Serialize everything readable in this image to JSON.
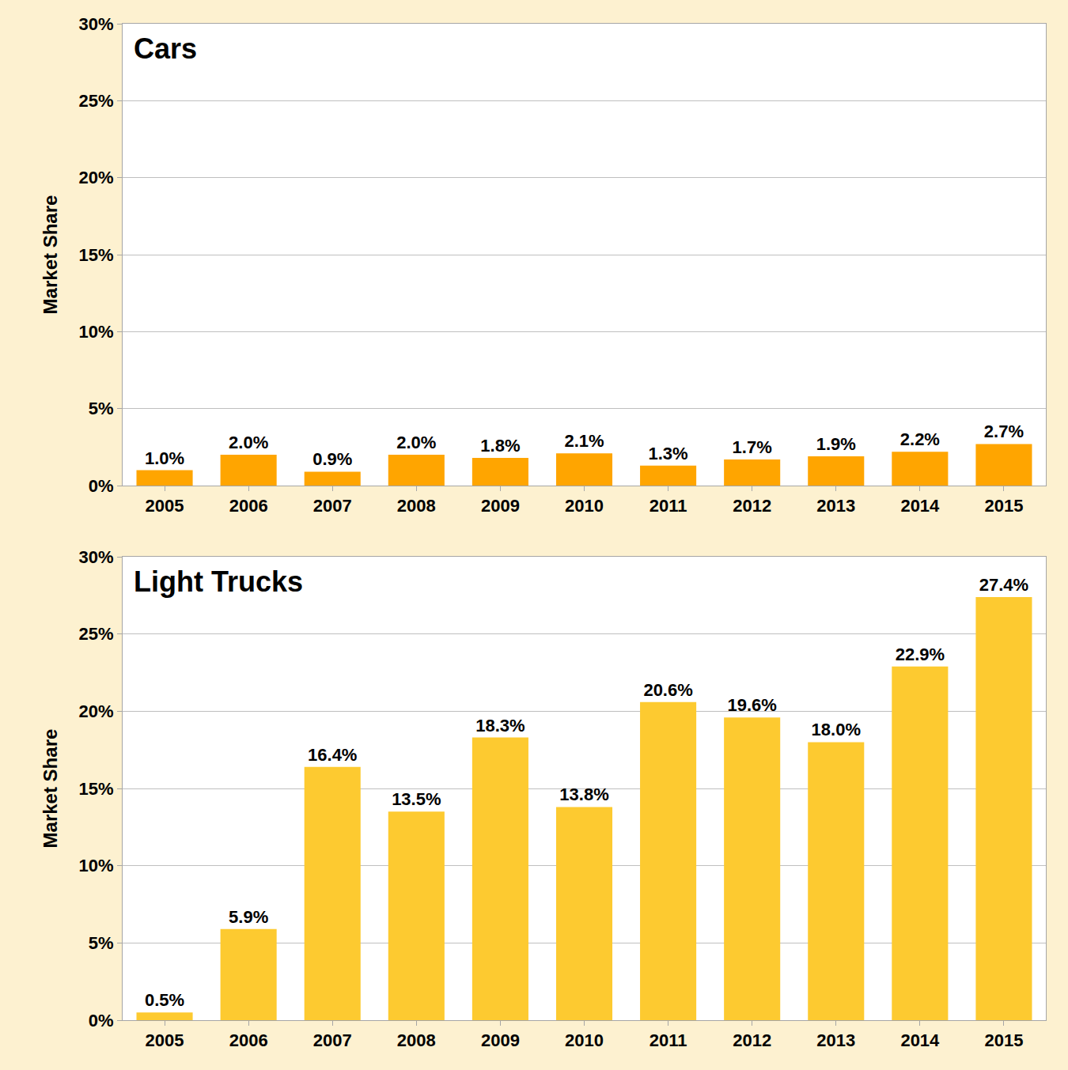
{
  "chart_data": [
    {
      "type": "bar",
      "title": "Cars",
      "y_label": "Market Share",
      "categories": [
        "2005",
        "2006",
        "2007",
        "2008",
        "2009",
        "2010",
        "2011",
        "2012",
        "2013",
        "2014",
        "2015"
      ],
      "values": [
        1.0,
        2.0,
        0.9,
        2.0,
        1.8,
        2.1,
        1.3,
        1.7,
        1.9,
        2.2,
        2.7
      ],
      "value_labels": [
        "1.0%",
        "2.0%",
        "0.9%",
        "2.0%",
        "1.8%",
        "2.1%",
        "1.3%",
        "1.7%",
        "1.9%",
        "2.2%",
        "2.7%"
      ],
      "color": "#ffa500",
      "data_labels": true,
      "grid": true,
      "ylim": [
        0,
        30
      ],
      "yticks": [
        {
          "value": 0,
          "label": "0%"
        },
        {
          "value": 5,
          "label": "5%"
        },
        {
          "value": 10,
          "label": "10%"
        },
        {
          "value": 15,
          "label": "15%"
        },
        {
          "value": 20,
          "label": "20%"
        },
        {
          "value": 25,
          "label": "25%"
        },
        {
          "value": 30,
          "label": "30%"
        }
      ]
    },
    {
      "type": "bar",
      "title": "Light Trucks",
      "y_label": "Market Share",
      "categories": [
        "2005",
        "2006",
        "2007",
        "2008",
        "2009",
        "2010",
        "2011",
        "2012",
        "2013",
        "2014",
        "2015"
      ],
      "values": [
        0.5,
        5.9,
        16.4,
        13.5,
        18.3,
        13.8,
        20.6,
        19.6,
        18.0,
        22.9,
        27.4
      ],
      "value_labels": [
        "0.5%",
        "5.9%",
        "16.4%",
        "13.5%",
        "18.3%",
        "13.8%",
        "20.6%",
        "19.6%",
        "18.0%",
        "22.9%",
        "27.4%"
      ],
      "color": "#fdca30",
      "data_labels": true,
      "grid": true,
      "ylim": [
        0,
        30
      ],
      "yticks": [
        {
          "value": 0,
          "label": "0%"
        },
        {
          "value": 5,
          "label": "5%"
        },
        {
          "value": 10,
          "label": "10%"
        },
        {
          "value": 15,
          "label": "15%"
        },
        {
          "value": 20,
          "label": "20%"
        },
        {
          "value": 25,
          "label": "25%"
        },
        {
          "value": 30,
          "label": "30%"
        }
      ]
    }
  ]
}
